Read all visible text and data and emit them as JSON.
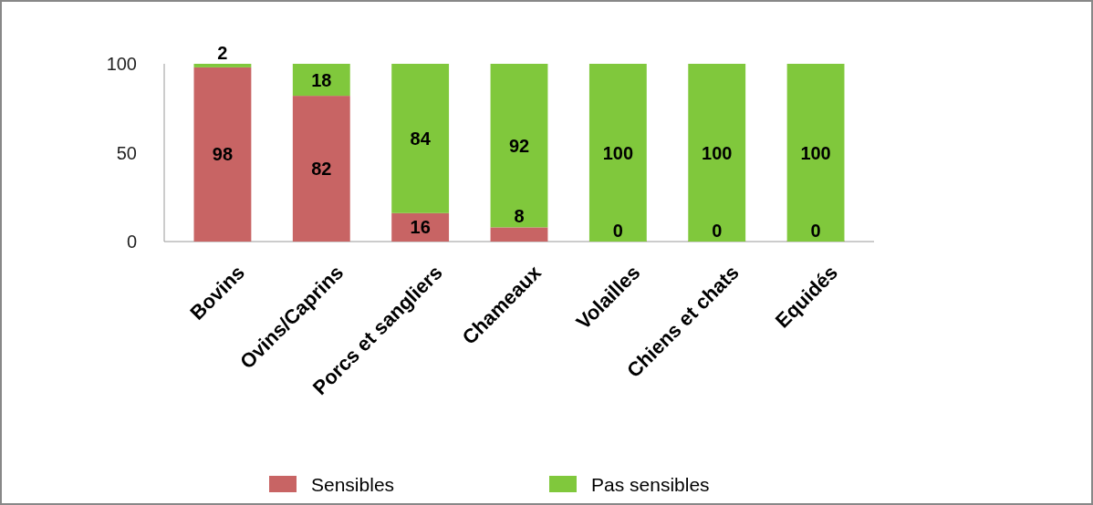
{
  "chart_data": {
    "type": "bar",
    "stacked": true,
    "categories": [
      "Bovins",
      "Ovins/Caprins",
      "Porcs et sangliers",
      "Chameaux",
      "Volailles",
      "Chiens et chats",
      "Equidés"
    ],
    "series": [
      {
        "name": "Sensibles",
        "color": "#c86464",
        "values": [
          98,
          82,
          16,
          8,
          0,
          0,
          0
        ]
      },
      {
        "name": "Pas sensibles",
        "color": "#80c83c",
        "values": [
          2,
          18,
          84,
          92,
          100,
          100,
          100
        ]
      }
    ],
    "ylim": [
      0,
      100
    ],
    "yticks": [
      0,
      50,
      100
    ],
    "data_labels": true,
    "legend": "bottom"
  }
}
